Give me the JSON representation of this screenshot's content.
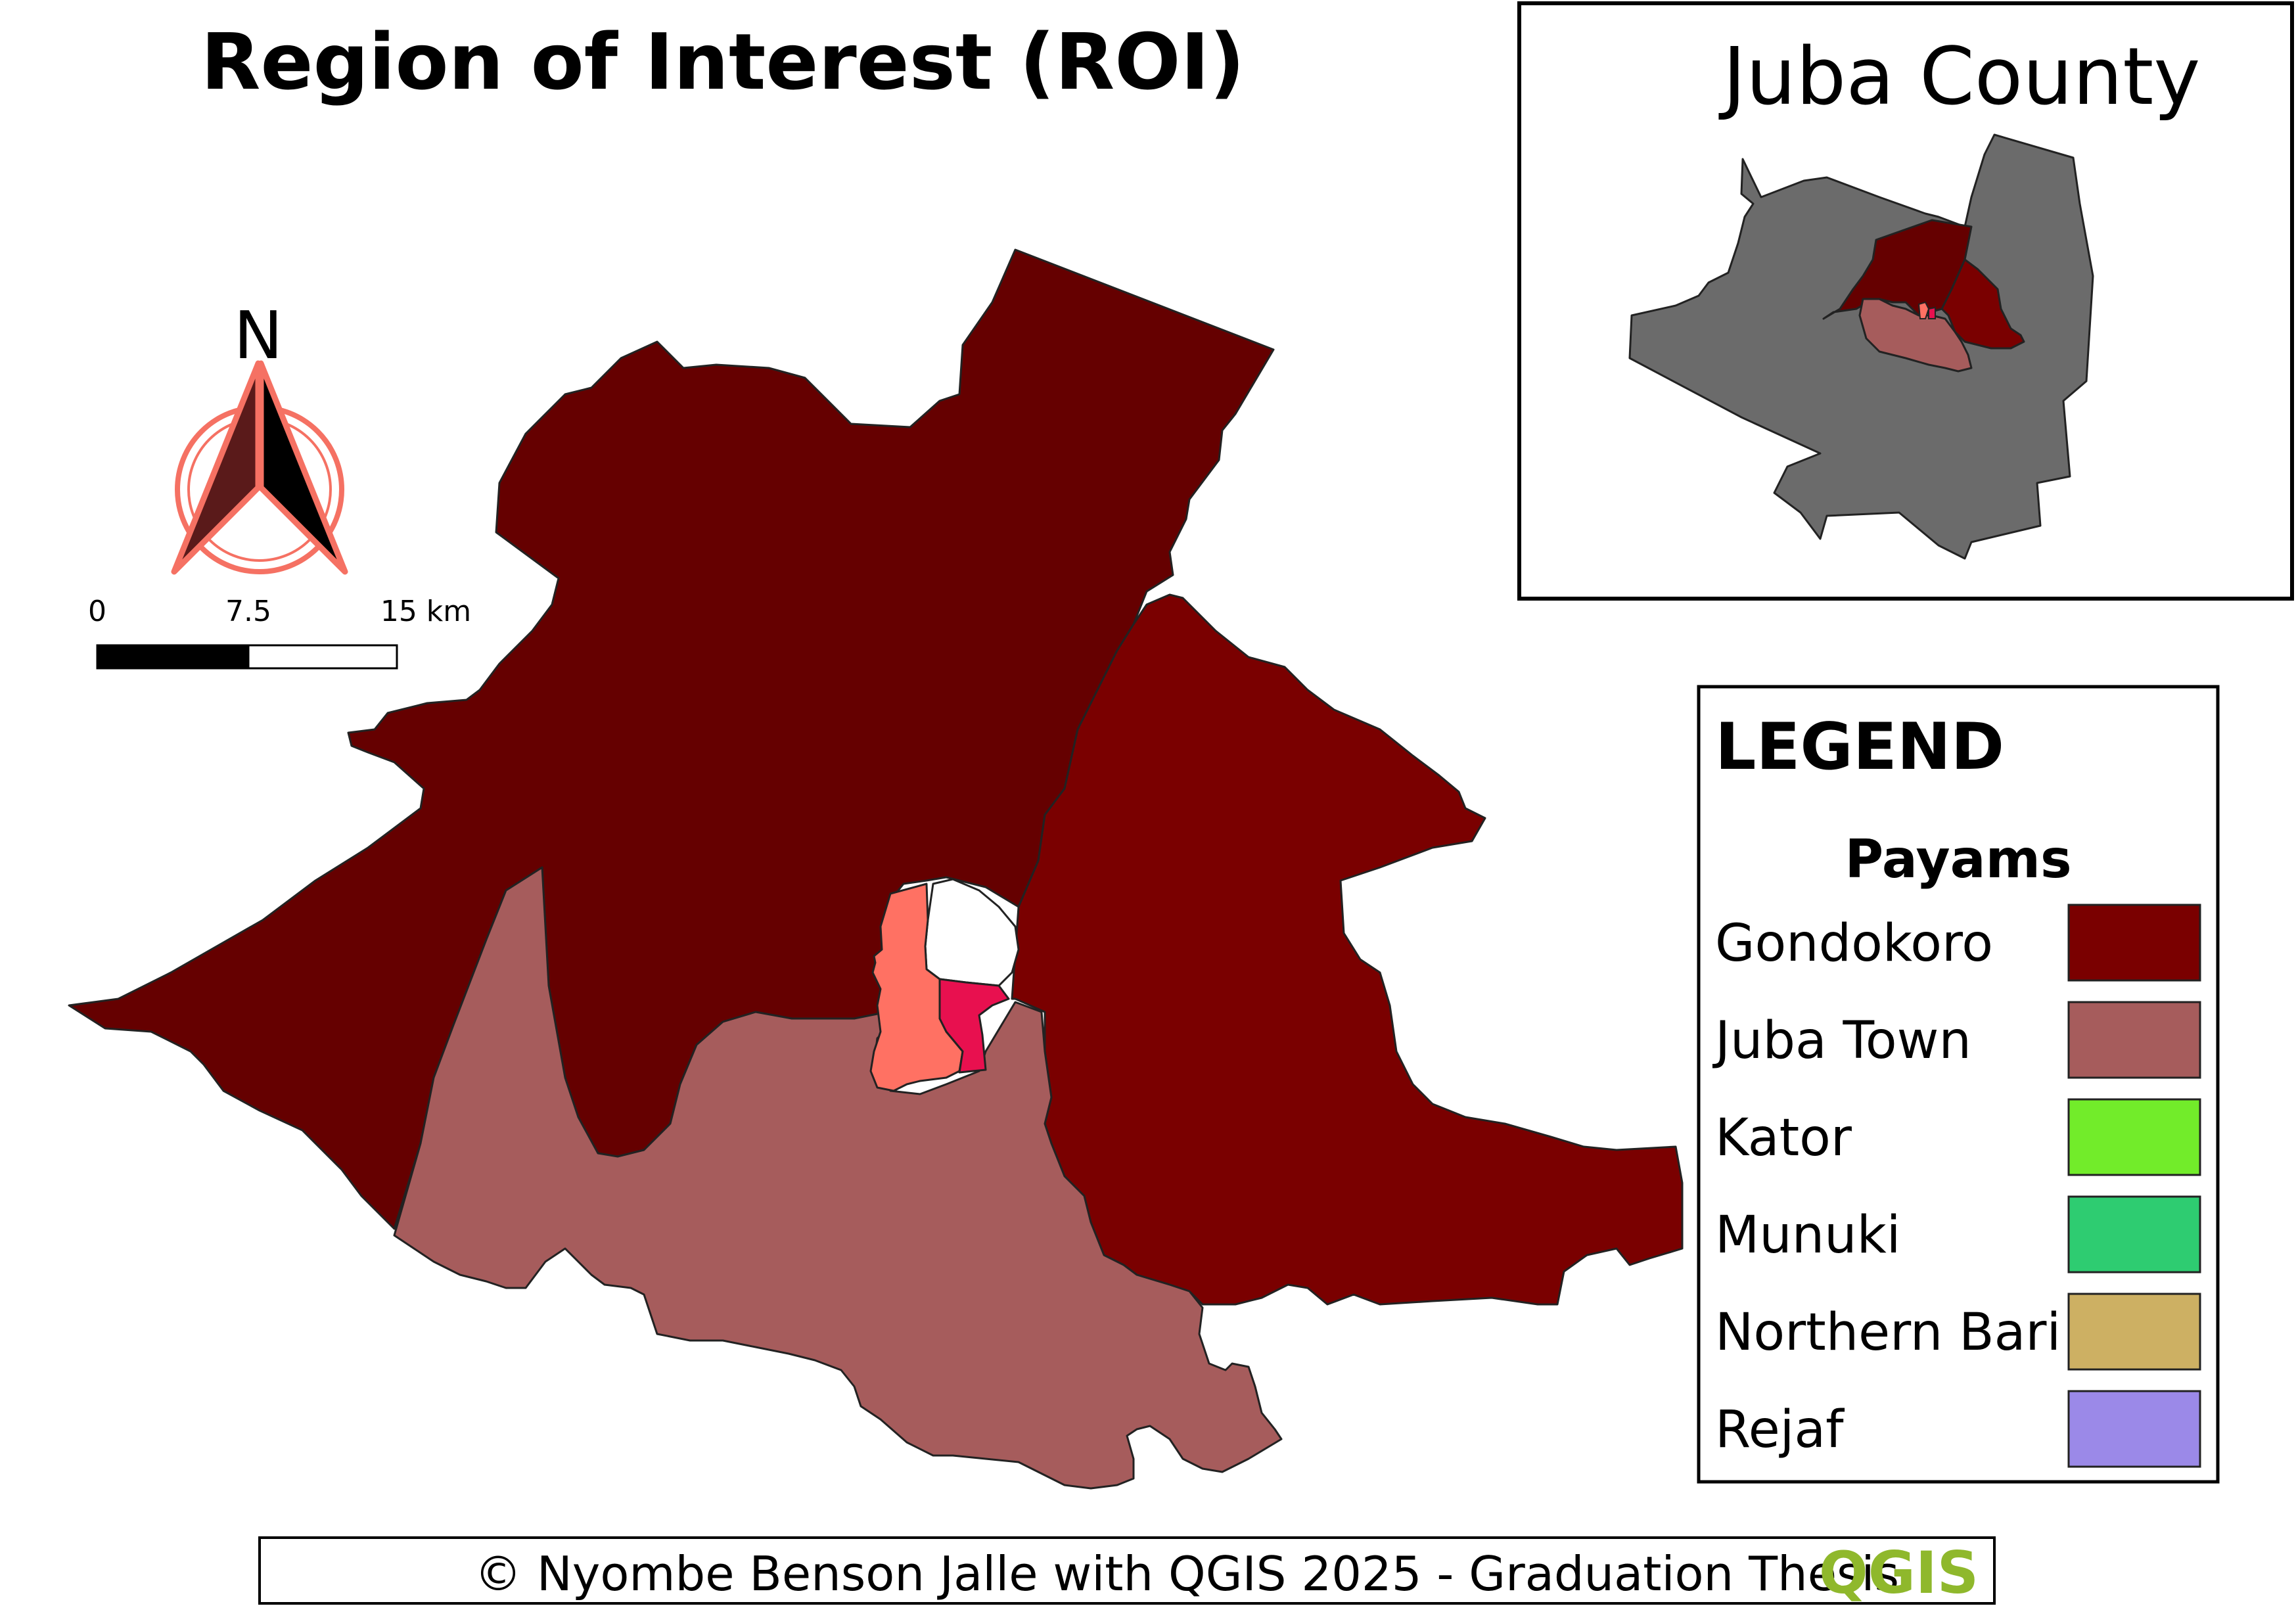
{
  "title": "Region of Interest (ROI)",
  "inset": {
    "title": "Juba County"
  },
  "north_arrow": {
    "label": "N"
  },
  "scale_bar": {
    "ticks": [
      "0",
      "7.5",
      "15 km"
    ]
  },
  "legend": {
    "heading": "LEGEND",
    "subheading": "Payams",
    "items": [
      {
        "label": "Gondokoro",
        "color": "#7a0000"
      },
      {
        "label": "Juba Town",
        "color": "#a65c5c"
      },
      {
        "label": "Kator",
        "color": "#72ec2a"
      },
      {
        "label": "Munuki",
        "color": "#2ecc71"
      },
      {
        "label": "Northern Bari",
        "color": "#cdb063"
      },
      {
        "label": "Rejaf",
        "color": "#9b89e8"
      }
    ]
  },
  "map_colors": {
    "northern": "#650000",
    "gondokoro": "#7a0000",
    "juba_town": "#a65c5c",
    "salmon": "#ff7163",
    "crimson": "#e8104f",
    "county": "#6b6b6b",
    "compass": "#f57163"
  },
  "footer": {
    "text": "© Nyombe Benson Jalle with QGIS 2025 - Graduation Thesis",
    "logo_text": "QGIS"
  }
}
